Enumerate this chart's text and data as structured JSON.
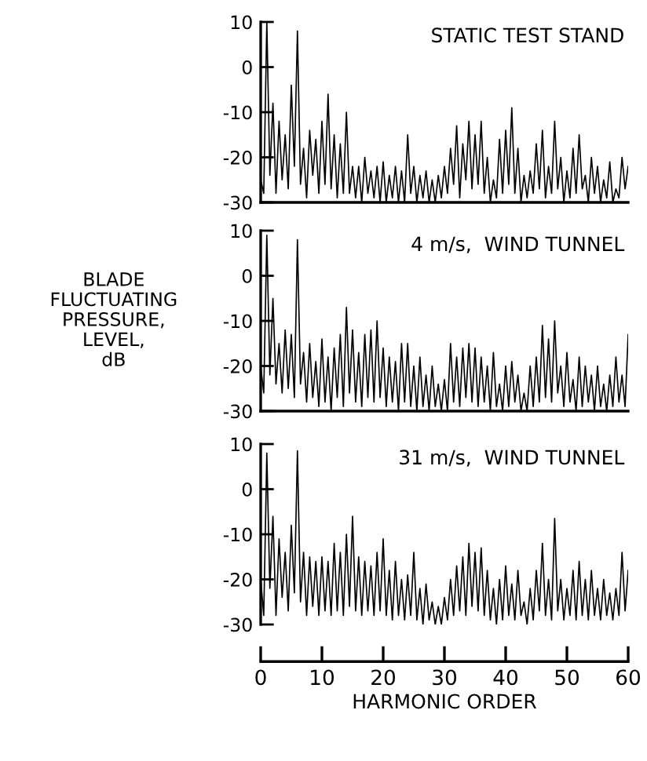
{
  "chart_data": [
    {
      "type": "line",
      "title": "STATIC TEST STAND",
      "xlim": [
        0,
        60
      ],
      "ylim": [
        -30,
        10
      ],
      "yticks": [
        10,
        0,
        -10,
        -20,
        -30
      ],
      "tick_labels": "y",
      "grid": false,
      "legend": false,
      "x": [
        0,
        0.5,
        1,
        1.5,
        2,
        2.5,
        3,
        3.5,
        4,
        4.5,
        5,
        5.5,
        6,
        6.5,
        7,
        7.5,
        8,
        8.5,
        9,
        9.5,
        10,
        10.5,
        11,
        11.5,
        12,
        12.5,
        13,
        13.5,
        14,
        14.5,
        15,
        15.5,
        16,
        16.5,
        17,
        17.5,
        18,
        18.5,
        19,
        19.5,
        20,
        20.5,
        21,
        21.5,
        22,
        22.5,
        23,
        23.5,
        24,
        24.5,
        25,
        25.5,
        26,
        26.5,
        27,
        27.5,
        28,
        28.5,
        29,
        29.5,
        30,
        30.5,
        31,
        31.5,
        32,
        32.5,
        33,
        33.5,
        34,
        34.5,
        35,
        35.5,
        36,
        36.5,
        37,
        37.5,
        38,
        38.5,
        39,
        39.5,
        40,
        40.5,
        41,
        41.5,
        42,
        42.5,
        43,
        43.5,
        44,
        44.5,
        45,
        45.5,
        46,
        46.5,
        47,
        47.5,
        48,
        48.5,
        49,
        49.5,
        50,
        50.5,
        51,
        51.5,
        52,
        52.5,
        53,
        53.5,
        54,
        54.5,
        55,
        55.5,
        56,
        56.5,
        57,
        57.5,
        58,
        58.5,
        59,
        59.5,
        60
      ],
      "series": [
        {
          "color": "#000000",
          "values": [
            -25,
            -28,
            10,
            -24,
            -8,
            -28,
            -12,
            -25,
            -15,
            -27,
            -4,
            -22,
            8,
            -26,
            -18,
            -29,
            -14,
            -24,
            -16,
            -28,
            -12,
            -26,
            -6,
            -27,
            -15,
            -29,
            -17,
            -28,
            -10,
            -28,
            -22,
            -29,
            -22,
            -30,
            -20,
            -28,
            -23,
            -29,
            -22,
            -30,
            -21,
            -30,
            -24,
            -29,
            -22,
            -30,
            -23,
            -30,
            -15,
            -28,
            -22,
            -30,
            -24,
            -29,
            -23,
            -30,
            -25,
            -30,
            -24,
            -29,
            -22,
            -28,
            -18,
            -26,
            -13,
            -29,
            -17,
            -25,
            -12,
            -27,
            -15,
            -26,
            -12,
            -28,
            -20,
            -30,
            -25,
            -29,
            -16,
            -28,
            -14,
            -26,
            -9,
            -28,
            -18,
            -30,
            -24,
            -29,
            -23,
            -28,
            -17,
            -27,
            -14,
            -29,
            -22,
            -28,
            -12,
            -27,
            -20,
            -30,
            -23,
            -29,
            -18,
            -28,
            -15,
            -27,
            -24,
            -30,
            -20,
            -28,
            -22,
            -30,
            -25,
            -29,
            -21,
            -30,
            -27,
            -29,
            -20,
            -27,
            -22
          ]
        }
      ]
    },
    {
      "type": "line",
      "title": "4 m/s,  WIND TUNNEL",
      "ylabel": "BLADE\nFLUCTUATING\nPRESSURE,\nLEVEL,\ndB",
      "xlim": [
        0,
        60
      ],
      "ylim": [
        -30,
        10
      ],
      "yticks": [
        10,
        0,
        -10,
        -20,
        -30
      ],
      "tick_labels": "y",
      "grid": false,
      "legend": false,
      "x": [
        0,
        0.5,
        1,
        1.5,
        2,
        2.5,
        3,
        3.5,
        4,
        4.5,
        5,
        5.5,
        6,
        6.5,
        7,
        7.5,
        8,
        8.5,
        9,
        9.5,
        10,
        10.5,
        11,
        11.5,
        12,
        12.5,
        13,
        13.5,
        14,
        14.5,
        15,
        15.5,
        16,
        16.5,
        17,
        17.5,
        18,
        18.5,
        19,
        19.5,
        20,
        20.5,
        21,
        21.5,
        22,
        22.5,
        23,
        23.5,
        24,
        24.5,
        25,
        25.5,
        26,
        26.5,
        27,
        27.5,
        28,
        28.5,
        29,
        29.5,
        30,
        30.5,
        31,
        31.5,
        32,
        32.5,
        33,
        33.5,
        34,
        34.5,
        35,
        35.5,
        36,
        36.5,
        37,
        37.5,
        38,
        38.5,
        39,
        39.5,
        40,
        40.5,
        41,
        41.5,
        42,
        42.5,
        43,
        43.5,
        44,
        44.5,
        45,
        45.5,
        46,
        46.5,
        47,
        47.5,
        48,
        48.5,
        49,
        49.5,
        50,
        50.5,
        51,
        51.5,
        52,
        52.5,
        53,
        53.5,
        54,
        54.5,
        55,
        55.5,
        56,
        56.5,
        57,
        57.5,
        58,
        58.5,
        59,
        59.5,
        60
      ],
      "series": [
        {
          "color": "#000000",
          "values": [
            -20,
            -26,
            9,
            -22,
            -5,
            -24,
            -15,
            -26,
            -12,
            -25,
            -13,
            -27,
            8,
            -24,
            -17,
            -28,
            -15,
            -27,
            -19,
            -29,
            -14,
            -28,
            -18,
            -30,
            -16,
            -27,
            -13,
            -29,
            -7,
            -26,
            -12,
            -28,
            -17,
            -29,
            -13,
            -27,
            -12,
            -28,
            -10,
            -27,
            -16,
            -29,
            -18,
            -28,
            -19,
            -30,
            -15,
            -28,
            -15,
            -29,
            -20,
            -30,
            -18,
            -29,
            -22,
            -30,
            -20,
            -29,
            -24,
            -30,
            -23,
            -30,
            -15,
            -28,
            -18,
            -29,
            -16,
            -27,
            -15,
            -28,
            -16,
            -29,
            -18,
            -28,
            -20,
            -30,
            -17,
            -29,
            -24,
            -30,
            -20,
            -29,
            -19,
            -28,
            -22,
            -30,
            -26,
            -30,
            -20,
            -29,
            -18,
            -28,
            -11,
            -27,
            -14,
            -28,
            -10,
            -26,
            -20,
            -29,
            -17,
            -28,
            -23,
            -30,
            -18,
            -29,
            -20,
            -28,
            -22,
            -30,
            -20,
            -29,
            -24,
            -30,
            -22,
            -29,
            -18,
            -28,
            -22,
            -29,
            -13
          ]
        }
      ]
    },
    {
      "type": "line",
      "title": "31 m/s,  WIND TUNNEL",
      "xlabel": "HARMONIC ORDER",
      "xlim": [
        0,
        60
      ],
      "ylim": [
        -30,
        10
      ],
      "yticks": [
        10,
        0,
        -10,
        -20,
        -30
      ],
      "xticks": [
        0,
        10,
        20,
        30,
        40,
        50,
        60
      ],
      "grid": false,
      "legend": false,
      "x": [
        0,
        0.5,
        1,
        1.5,
        2,
        2.5,
        3,
        3.5,
        4,
        4.5,
        5,
        5.5,
        6,
        6.5,
        7,
        7.5,
        8,
        8.5,
        9,
        9.5,
        10,
        10.5,
        11,
        11.5,
        12,
        12.5,
        13,
        13.5,
        14,
        14.5,
        15,
        15.5,
        16,
        16.5,
        17,
        17.5,
        18,
        18.5,
        19,
        19.5,
        20,
        20.5,
        21,
        21.5,
        22,
        22.5,
        23,
        23.5,
        24,
        24.5,
        25,
        25.5,
        26,
        26.5,
        27,
        27.5,
        28,
        28.5,
        29,
        29.5,
        30,
        30.5,
        31,
        31.5,
        32,
        32.5,
        33,
        33.5,
        34,
        34.5,
        35,
        35.5,
        36,
        36.5,
        37,
        37.5,
        38,
        38.5,
        39,
        39.5,
        40,
        40.5,
        41,
        41.5,
        42,
        42.5,
        43,
        43.5,
        44,
        44.5,
        45,
        45.5,
        46,
        46.5,
        47,
        47.5,
        48,
        48.5,
        49,
        49.5,
        50,
        50.5,
        51,
        51.5,
        52,
        52.5,
        53,
        53.5,
        54,
        54.5,
        55,
        55.5,
        56,
        56.5,
        57,
        57.5,
        58,
        58.5,
        59,
        59.5,
        60
      ],
      "series": [
        {
          "color": "#000000",
          "values": [
            -20,
            -28,
            8,
            -22,
            -6,
            -28,
            -11,
            -24,
            -14,
            -27,
            -8,
            -23,
            8.5,
            -25,
            -14,
            -28,
            -15,
            -26,
            -16,
            -28,
            -15,
            -27,
            -16,
            -28,
            -12,
            -27,
            -14,
            -28,
            -10,
            -26,
            -6,
            -27,
            -15,
            -28,
            -16,
            -27,
            -17,
            -28,
            -14,
            -27,
            -11,
            -28,
            -18,
            -29,
            -16,
            -28,
            -20,
            -29,
            -19,
            -28,
            -14,
            -29,
            -22,
            -30,
            -21,
            -29,
            -25,
            -30,
            -26,
            -30,
            -24,
            -29,
            -20,
            -28,
            -17,
            -27,
            -15,
            -28,
            -12,
            -26,
            -14,
            -27,
            -13,
            -28,
            -18,
            -29,
            -22,
            -30,
            -20,
            -29,
            -17,
            -28,
            -21,
            -29,
            -18,
            -28,
            -25,
            -30,
            -22,
            -29,
            -18,
            -27,
            -12,
            -28,
            -20,
            -29,
            -6.5,
            -27,
            -20,
            -29,
            -22,
            -28,
            -18,
            -29,
            -16,
            -28,
            -20,
            -29,
            -18,
            -28,
            -22,
            -29,
            -20,
            -28,
            -23,
            -29,
            -22,
            -28,
            -14,
            -27,
            -18
          ]
        }
      ]
    }
  ]
}
